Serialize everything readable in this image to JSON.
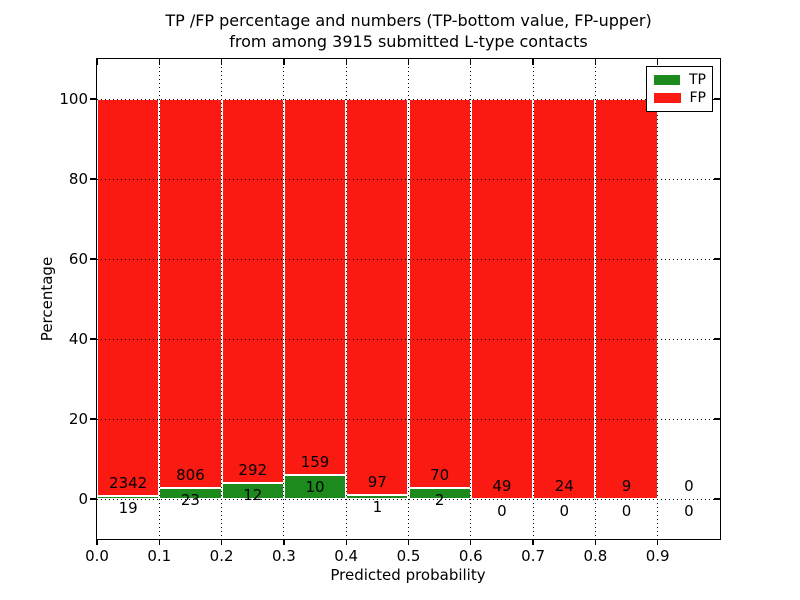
{
  "figure": {
    "title_line1": "TP /FP percentage and numbers (TP-bottom value, FP-upper)",
    "title_line2": "from among 3915 submitted L-type contacts"
  },
  "chart_data": {
    "type": "bar",
    "subtype": "stacked_percentage_histogram",
    "title": "TP /FP percentage and numbers (TP-bottom value, FP-upper) from among 3915 submitted L-type contacts",
    "xlabel": "Predicted probability",
    "ylabel": "Percentage",
    "total_contacts": 3915,
    "bin_width": 0.1,
    "bin_starts": [
      0.0,
      0.1,
      0.2,
      0.3,
      0.4,
      0.5,
      0.6,
      0.7,
      0.8,
      0.9
    ],
    "series": [
      {
        "name": "TP",
        "color": "#1c8a1c",
        "counts": [
          19,
          23,
          12,
          10,
          1,
          2,
          0,
          0,
          0,
          0
        ]
      },
      {
        "name": "FP",
        "color": "#fb1a12",
        "counts": [
          2342,
          806,
          292,
          159,
          97,
          70,
          49,
          24,
          9,
          0
        ]
      }
    ],
    "annotation_rule": "each bin normalized to 100%; TP segment at bottom, FP above; FP count printed above TP/FP boundary, TP count printed below it; empty bin 0.9-1.0 shows 0 and 0",
    "xticks": [
      "0.0",
      "0.1",
      "0.2",
      "0.3",
      "0.4",
      "0.5",
      "0.6",
      "0.7",
      "0.8",
      "0.9"
    ],
    "yticks": [
      "0",
      "20",
      "40",
      "60",
      "80",
      "100"
    ],
    "xlim": [
      0.0,
      1.0
    ],
    "ylim": [
      -10,
      110
    ],
    "grid": "dotted black, both axes, drawn above bars",
    "bar_edge_color": "#ffffff",
    "legend": {
      "position": "upper_right",
      "entries": [
        "TP",
        "FP"
      ]
    }
  }
}
